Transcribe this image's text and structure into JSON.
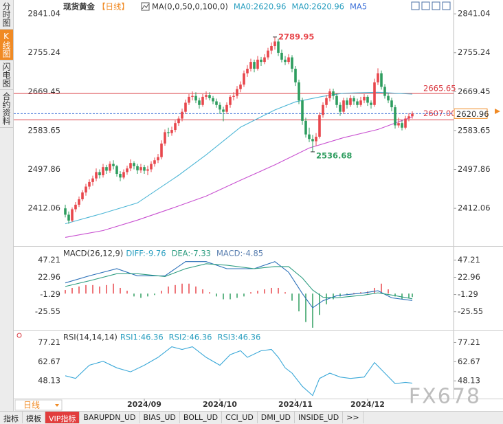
{
  "sidebar_tabs": [
    "分时图",
    "K线图",
    "闪电图",
    "合约资料"
  ],
  "period_selector": "日线",
  "bottom_tabs": [
    "指标",
    "模板",
    "VIP指标",
    "BARUPDN_UD",
    "BIAS_UD",
    "BOLL_UD",
    "CCI_UD",
    "DMI_UD",
    "INSIDE_UD",
    ">>"
  ],
  "watermark": "FX678",
  "chart_data": [
    {
      "type": "candlestick",
      "title": "现货黄金",
      "period": "【日线】",
      "indicator_labels": [
        "MA(0,0,50,0,100,0)",
        "MA0:2620.96",
        "MA0:2620.96",
        "MA5"
      ],
      "indicator_colors": [
        "#333333",
        "#2a9fc0",
        "#2a9fc0",
        "#3b6fd8"
      ],
      "up_color": "#e8474c",
      "down_color": "#2e9d5f",
      "xlim": [
        -15,
        113
      ],
      "ylim": [
        2338,
        2864
      ],
      "yticks": [
        2841.04,
        2755.24,
        2669.45,
        2583.65,
        2497.86,
        2412.06
      ],
      "xticks": [
        {
          "value": 23,
          "label": "2024/09"
        },
        {
          "value": 45,
          "label": "2024/10"
        },
        {
          "value": 67,
          "label": "2024/11"
        },
        {
          "value": 88,
          "label": "2024/12"
        }
      ],
      "ohlc": [
        [
          2412,
          2420,
          2392,
          2398
        ],
        [
          2398,
          2405,
          2378,
          2385
        ],
        [
          2385,
          2414,
          2382,
          2410
        ],
        [
          2410,
          2426,
          2404,
          2420
        ],
        [
          2420,
          2438,
          2415,
          2432
        ],
        [
          2432,
          2452,
          2428,
          2447
        ],
        [
          2447,
          2466,
          2440,
          2460
        ],
        [
          2460,
          2476,
          2454,
          2470
        ],
        [
          2470,
          2484,
          2462,
          2478
        ],
        [
          2478,
          2500,
          2472,
          2492
        ],
        [
          2492,
          2498,
          2478,
          2485
        ],
        [
          2485,
          2510,
          2480,
          2503
        ],
        [
          2503,
          2508,
          2488,
          2495
        ],
        [
          2495,
          2516,
          2490,
          2510
        ],
        [
          2510,
          2518,
          2498,
          2505
        ],
        [
          2505,
          2508,
          2482,
          2488
        ],
        [
          2488,
          2494,
          2472,
          2480
        ],
        [
          2480,
          2498,
          2476,
          2492
        ],
        [
          2492,
          2506,
          2486,
          2500
        ],
        [
          2500,
          2520,
          2494,
          2512
        ],
        [
          2512,
          2516,
          2498,
          2505
        ],
        [
          2505,
          2510,
          2488,
          2496
        ],
        [
          2496,
          2510,
          2490,
          2503
        ],
        [
          2503,
          2508,
          2488,
          2495
        ],
        [
          2495,
          2506,
          2485,
          2498
        ],
        [
          2498,
          2516,
          2492,
          2510
        ],
        [
          2510,
          2524,
          2504,
          2518
        ],
        [
          2518,
          2532,
          2512,
          2525
        ],
        [
          2525,
          2562,
          2520,
          2555
        ],
        [
          2555,
          2586,
          2550,
          2580
        ],
        [
          2580,
          2590,
          2570,
          2578
        ],
        [
          2578,
          2592,
          2572,
          2585
        ],
        [
          2585,
          2606,
          2580,
          2600
        ],
        [
          2600,
          2615,
          2594,
          2610
        ],
        [
          2610,
          2632,
          2604,
          2625
        ],
        [
          2625,
          2652,
          2620,
          2645
        ],
        [
          2645,
          2664,
          2640,
          2658
        ],
        [
          2658,
          2670,
          2650,
          2660
        ],
        [
          2660,
          2668,
          2644,
          2650
        ],
        [
          2650,
          2656,
          2632,
          2640
        ],
        [
          2640,
          2664,
          2636,
          2658
        ],
        [
          2658,
          2670,
          2652,
          2662
        ],
        [
          2662,
          2668,
          2650,
          2655
        ],
        [
          2655,
          2660,
          2642,
          2648
        ],
        [
          2648,
          2654,
          2634,
          2640
        ],
        [
          2640,
          2646,
          2620,
          2630
        ],
        [
          2630,
          2636,
          2604,
          2625
        ],
        [
          2625,
          2646,
          2620,
          2640
        ],
        [
          2640,
          2662,
          2634,
          2658
        ],
        [
          2658,
          2668,
          2650,
          2660
        ],
        [
          2660,
          2682,
          2654,
          2675
        ],
        [
          2675,
          2692,
          2668,
          2685
        ],
        [
          2685,
          2716,
          2680,
          2710
        ],
        [
          2710,
          2728,
          2702,
          2720
        ],
        [
          2720,
          2742,
          2714,
          2735
        ],
        [
          2735,
          2740,
          2712,
          2720
        ],
        [
          2720,
          2748,
          2716,
          2740
        ],
        [
          2740,
          2746,
          2726,
          2735
        ],
        [
          2735,
          2752,
          2730,
          2745
        ],
        [
          2745,
          2766,
          2740,
          2760
        ],
        [
          2760,
          2778,
          2752,
          2770
        ],
        [
          2770,
          2789.95,
          2762,
          2780
        ],
        [
          2780,
          2786,
          2748,
          2755
        ],
        [
          2755,
          2762,
          2734,
          2740
        ],
        [
          2740,
          2748,
          2728,
          2735
        ],
        [
          2735,
          2752,
          2730,
          2745
        ],
        [
          2745,
          2750,
          2712,
          2720
        ],
        [
          2720,
          2726,
          2682,
          2690
        ],
        [
          2690,
          2696,
          2642,
          2650
        ],
        [
          2650,
          2656,
          2596,
          2605
        ],
        [
          2605,
          2612,
          2568,
          2575
        ],
        [
          2575,
          2590,
          2558,
          2565
        ],
        [
          2565,
          2574,
          2536.68,
          2560
        ],
        [
          2560,
          2578,
          2550,
          2570
        ],
        [
          2570,
          2624,
          2566,
          2618
        ],
        [
          2618,
          2646,
          2612,
          2640
        ],
        [
          2640,
          2662,
          2634,
          2655
        ],
        [
          2655,
          2676,
          2648,
          2670
        ],
        [
          2670,
          2676,
          2652,
          2660
        ],
        [
          2660,
          2666,
          2634,
          2640
        ],
        [
          2640,
          2646,
          2616,
          2625
        ],
        [
          2625,
          2656,
          2620,
          2650
        ],
        [
          2650,
          2656,
          2632,
          2640
        ],
        [
          2640,
          2662,
          2636,
          2655
        ],
        [
          2655,
          2660,
          2640,
          2648
        ],
        [
          2648,
          2654,
          2634,
          2640
        ],
        [
          2640,
          2658,
          2636,
          2650
        ],
        [
          2650,
          2664,
          2644,
          2658
        ],
        [
          2658,
          2662,
          2638,
          2645
        ],
        [
          2645,
          2650,
          2632,
          2640
        ],
        [
          2640,
          2698,
          2636,
          2690
        ],
        [
          2690,
          2721,
          2684,
          2710
        ],
        [
          2710,
          2716,
          2674,
          2680
        ],
        [
          2680,
          2686,
          2654,
          2660
        ],
        [
          2660,
          2666,
          2644,
          2650
        ],
        [
          2650,
          2656,
          2626,
          2635
        ],
        [
          2635,
          2640,
          2588,
          2595
        ],
        [
          2595,
          2612,
          2590,
          2600
        ],
        [
          2600,
          2606,
          2584,
          2590
        ],
        [
          2590,
          2616,
          2586,
          2610
        ],
        [
          2610,
          2622,
          2604,
          2615
        ],
        [
          2615,
          2626,
          2610,
          2620.96
        ]
      ],
      "series": [
        {
          "color": "#4db6d6",
          "x": [
            0,
            11,
            21,
            33,
            41,
            51,
            61,
            67,
            75,
            81,
            91,
            101
          ],
          "values": [
            2378,
            2401,
            2424,
            2485,
            2530,
            2591,
            2629,
            2647,
            2659,
            2666,
            2668,
            2664
          ]
        },
        {
          "color": "#c84fd0",
          "x": [
            0,
            11,
            21,
            31,
            41,
            51,
            61,
            71,
            81,
            91,
            101
          ],
          "values": [
            2348,
            2363,
            2386,
            2412,
            2439,
            2474,
            2508,
            2545,
            2568,
            2586,
            2614
          ]
        }
      ],
      "reference_lines": [
        2665.65,
        {
          "value": 2607,
          "label": "2607.00"
        }
      ],
      "reference_color": "#d9363e",
      "current_price": 2620.96,
      "annotations": [
        {
          "x": 61,
          "value": 2789.95,
          "color": "#e8474c"
        },
        {
          "x": 72,
          "value": 2536.68,
          "color": "#2e9d5f"
        }
      ]
    },
    {
      "type": "macd",
      "title": "MACD(26,12,9)",
      "labels": [
        "DIFF:-9.76",
        "DEA:-7.33",
        "MACD:-4.85"
      ],
      "label_colors": [
        "#2a9fc0",
        "#2e9d80",
        "#5a7fb0"
      ],
      "xlim": [
        -15,
        113
      ],
      "ylim": [
        -51,
        65
      ],
      "yticks": [
        47.21,
        22.96,
        -1.29,
        -25.55
      ],
      "series": [
        {
          "color": "#2a6fb8",
          "x": [
            0,
            7,
            15,
            21,
            29,
            35,
            41,
            47,
            55,
            61,
            65,
            69,
            72,
            75,
            79,
            87,
            91,
            95,
            101
          ],
          "values": [
            15,
            25,
            35,
            25,
            25,
            45,
            45,
            35,
            35,
            45,
            30,
            0,
            -20,
            -10,
            -3,
            1,
            4,
            -6,
            -9.76
          ]
        },
        {
          "color": "#2e9d80",
          "x": [
            0,
            7,
            15,
            21,
            29,
            35,
            41,
            47,
            55,
            61,
            65,
            69,
            72,
            75,
            79,
            87,
            91,
            95,
            101
          ],
          "values": [
            10,
            18,
            28,
            28,
            24,
            35,
            42,
            40,
            35,
            38,
            38,
            22,
            5,
            -5,
            -6,
            -2,
            1,
            -2,
            -7.33
          ]
        }
      ],
      "histogram": {
        "up_color": "#e8474c",
        "down_color": "#2e9d5f",
        "x": [
          0,
          2,
          4,
          6,
          8,
          10,
          12,
          14,
          16,
          18,
          20,
          22,
          24,
          26,
          28,
          30,
          32,
          34,
          36,
          38,
          40,
          42,
          44,
          46,
          48,
          50,
          52,
          54,
          56,
          58,
          60,
          62,
          64,
          66,
          68,
          70,
          72,
          74,
          76,
          78,
          80,
          82,
          84,
          86,
          88,
          90,
          92,
          94,
          96,
          98,
          100,
          101
        ],
        "values": [
          5,
          8,
          10,
          12,
          12,
          10,
          12,
          14,
          8,
          4,
          -4,
          -6,
          -4,
          -2,
          4,
          10,
          12,
          14,
          14,
          10,
          6,
          2,
          -4,
          -8,
          -8,
          -6,
          -4,
          2,
          4,
          6,
          8,
          8,
          2,
          -10,
          -25,
          -40,
          -48,
          -30,
          -15,
          -8,
          -4,
          -2,
          1,
          2,
          3,
          8,
          14,
          6,
          -4,
          -8,
          -6,
          -4.85
        ]
      }
    },
    {
      "type": "line",
      "title": "RSI(14,14,14)",
      "labels": [
        "RSI1:46.36",
        "RSI2:46.36",
        "RSI3:46.36"
      ],
      "label_colors": [
        "#2a9fc0",
        "#2a9fc0",
        "#2a9fc0"
      ],
      "xlim": [
        -15,
        113
      ],
      "ylim": [
        34.7,
        85.8
      ],
      "yticks": [
        77.21,
        62.67,
        48.13
      ],
      "series": [
        {
          "color": "#3aa8d8",
          "x": [
            0,
            3,
            7,
            11,
            15,
            19,
            23,
            27,
            31,
            34,
            37,
            41,
            45,
            48,
            51,
            53,
            57,
            60,
            62,
            64,
            66,
            69,
            72,
            74,
            77,
            80,
            83,
            87,
            90,
            93,
            96,
            99,
            101
          ],
          "values": [
            52,
            50,
            60,
            63,
            58,
            55,
            60,
            66,
            74,
            72,
            74,
            66,
            60,
            68,
            71,
            66,
            71,
            72,
            66,
            58,
            54,
            44,
            37,
            50,
            54,
            51,
            50,
            51,
            62,
            54,
            46,
            47,
            46.36
          ]
        }
      ]
    }
  ]
}
